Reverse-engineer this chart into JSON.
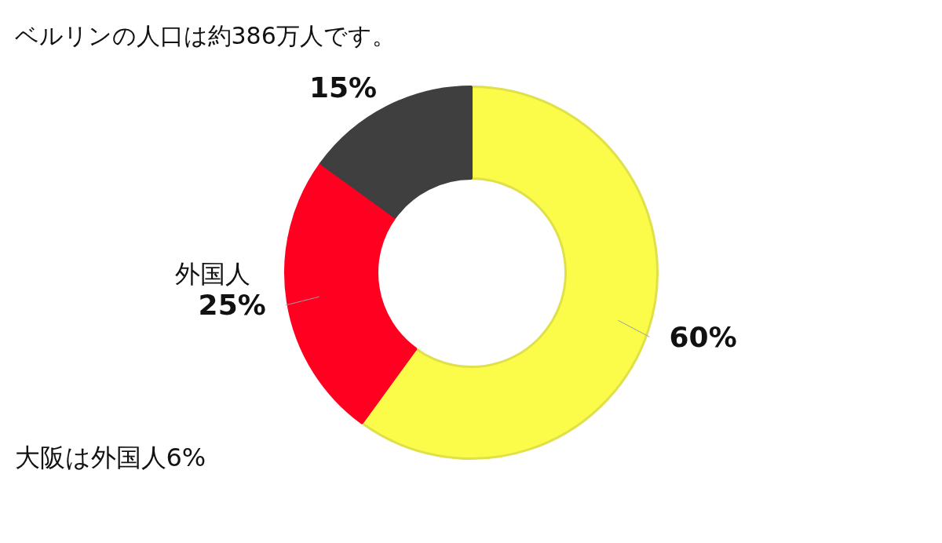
{
  "chart_data": {
    "type": "donut",
    "title": "ベルリンの人口は約386万人です。",
    "categories": [
      null,
      "外国人",
      null
    ],
    "values": [
      60,
      25,
      15
    ],
    "value_labels": [
      "60%",
      "25%",
      "15%"
    ],
    "colors": [
      "#fbfb4a",
      "#ff0020",
      "#3f3f3f"
    ],
    "annotations": [
      "大阪は外国人6%"
    ]
  }
}
